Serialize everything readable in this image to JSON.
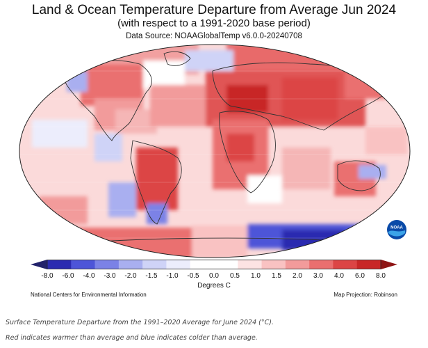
{
  "header": {
    "title": "Land & Ocean Temperature Departure from Average Jun 2024",
    "subtitle": "(with respect to a 1991-2020 base period)",
    "source": "Data Source: NOAAGlobalTemp v6.0.0-20240708"
  },
  "legend": {
    "ticks": [
      "-8.0",
      "-6.0",
      "-4.0",
      "-3.0",
      "-2.0",
      "-1.5",
      "-1.0",
      "-0.5",
      "0.0",
      "0.5",
      "1.0",
      "1.5",
      "2.0",
      "3.0",
      "4.0",
      "6.0",
      "8.0"
    ],
    "unit": "Degrees C",
    "colors": [
      "#22226b",
      "#2b2bb0",
      "#4d55d8",
      "#7b82e6",
      "#a9aff0",
      "#cfd3f7",
      "#ecedfc",
      "#ffffff",
      "#ffffff",
      "#fde3e3",
      "#f9c2c2",
      "#f29b9b",
      "#ea6f6f",
      "#dc4545",
      "#c82727",
      "#8e1414"
    ]
  },
  "footer": {
    "left": "National Centers for Environmental Information",
    "right": "Map Projection: Robinson"
  },
  "logo": {
    "text": "NOAA",
    "icon": "noaa-logo-icon"
  },
  "caption": {
    "line1": "Surface Temperature Departure from the 1991–2020 Average for June 2024 (°C).",
    "line2": "Red indicates warmer than average and blue indicates colder than average."
  }
}
